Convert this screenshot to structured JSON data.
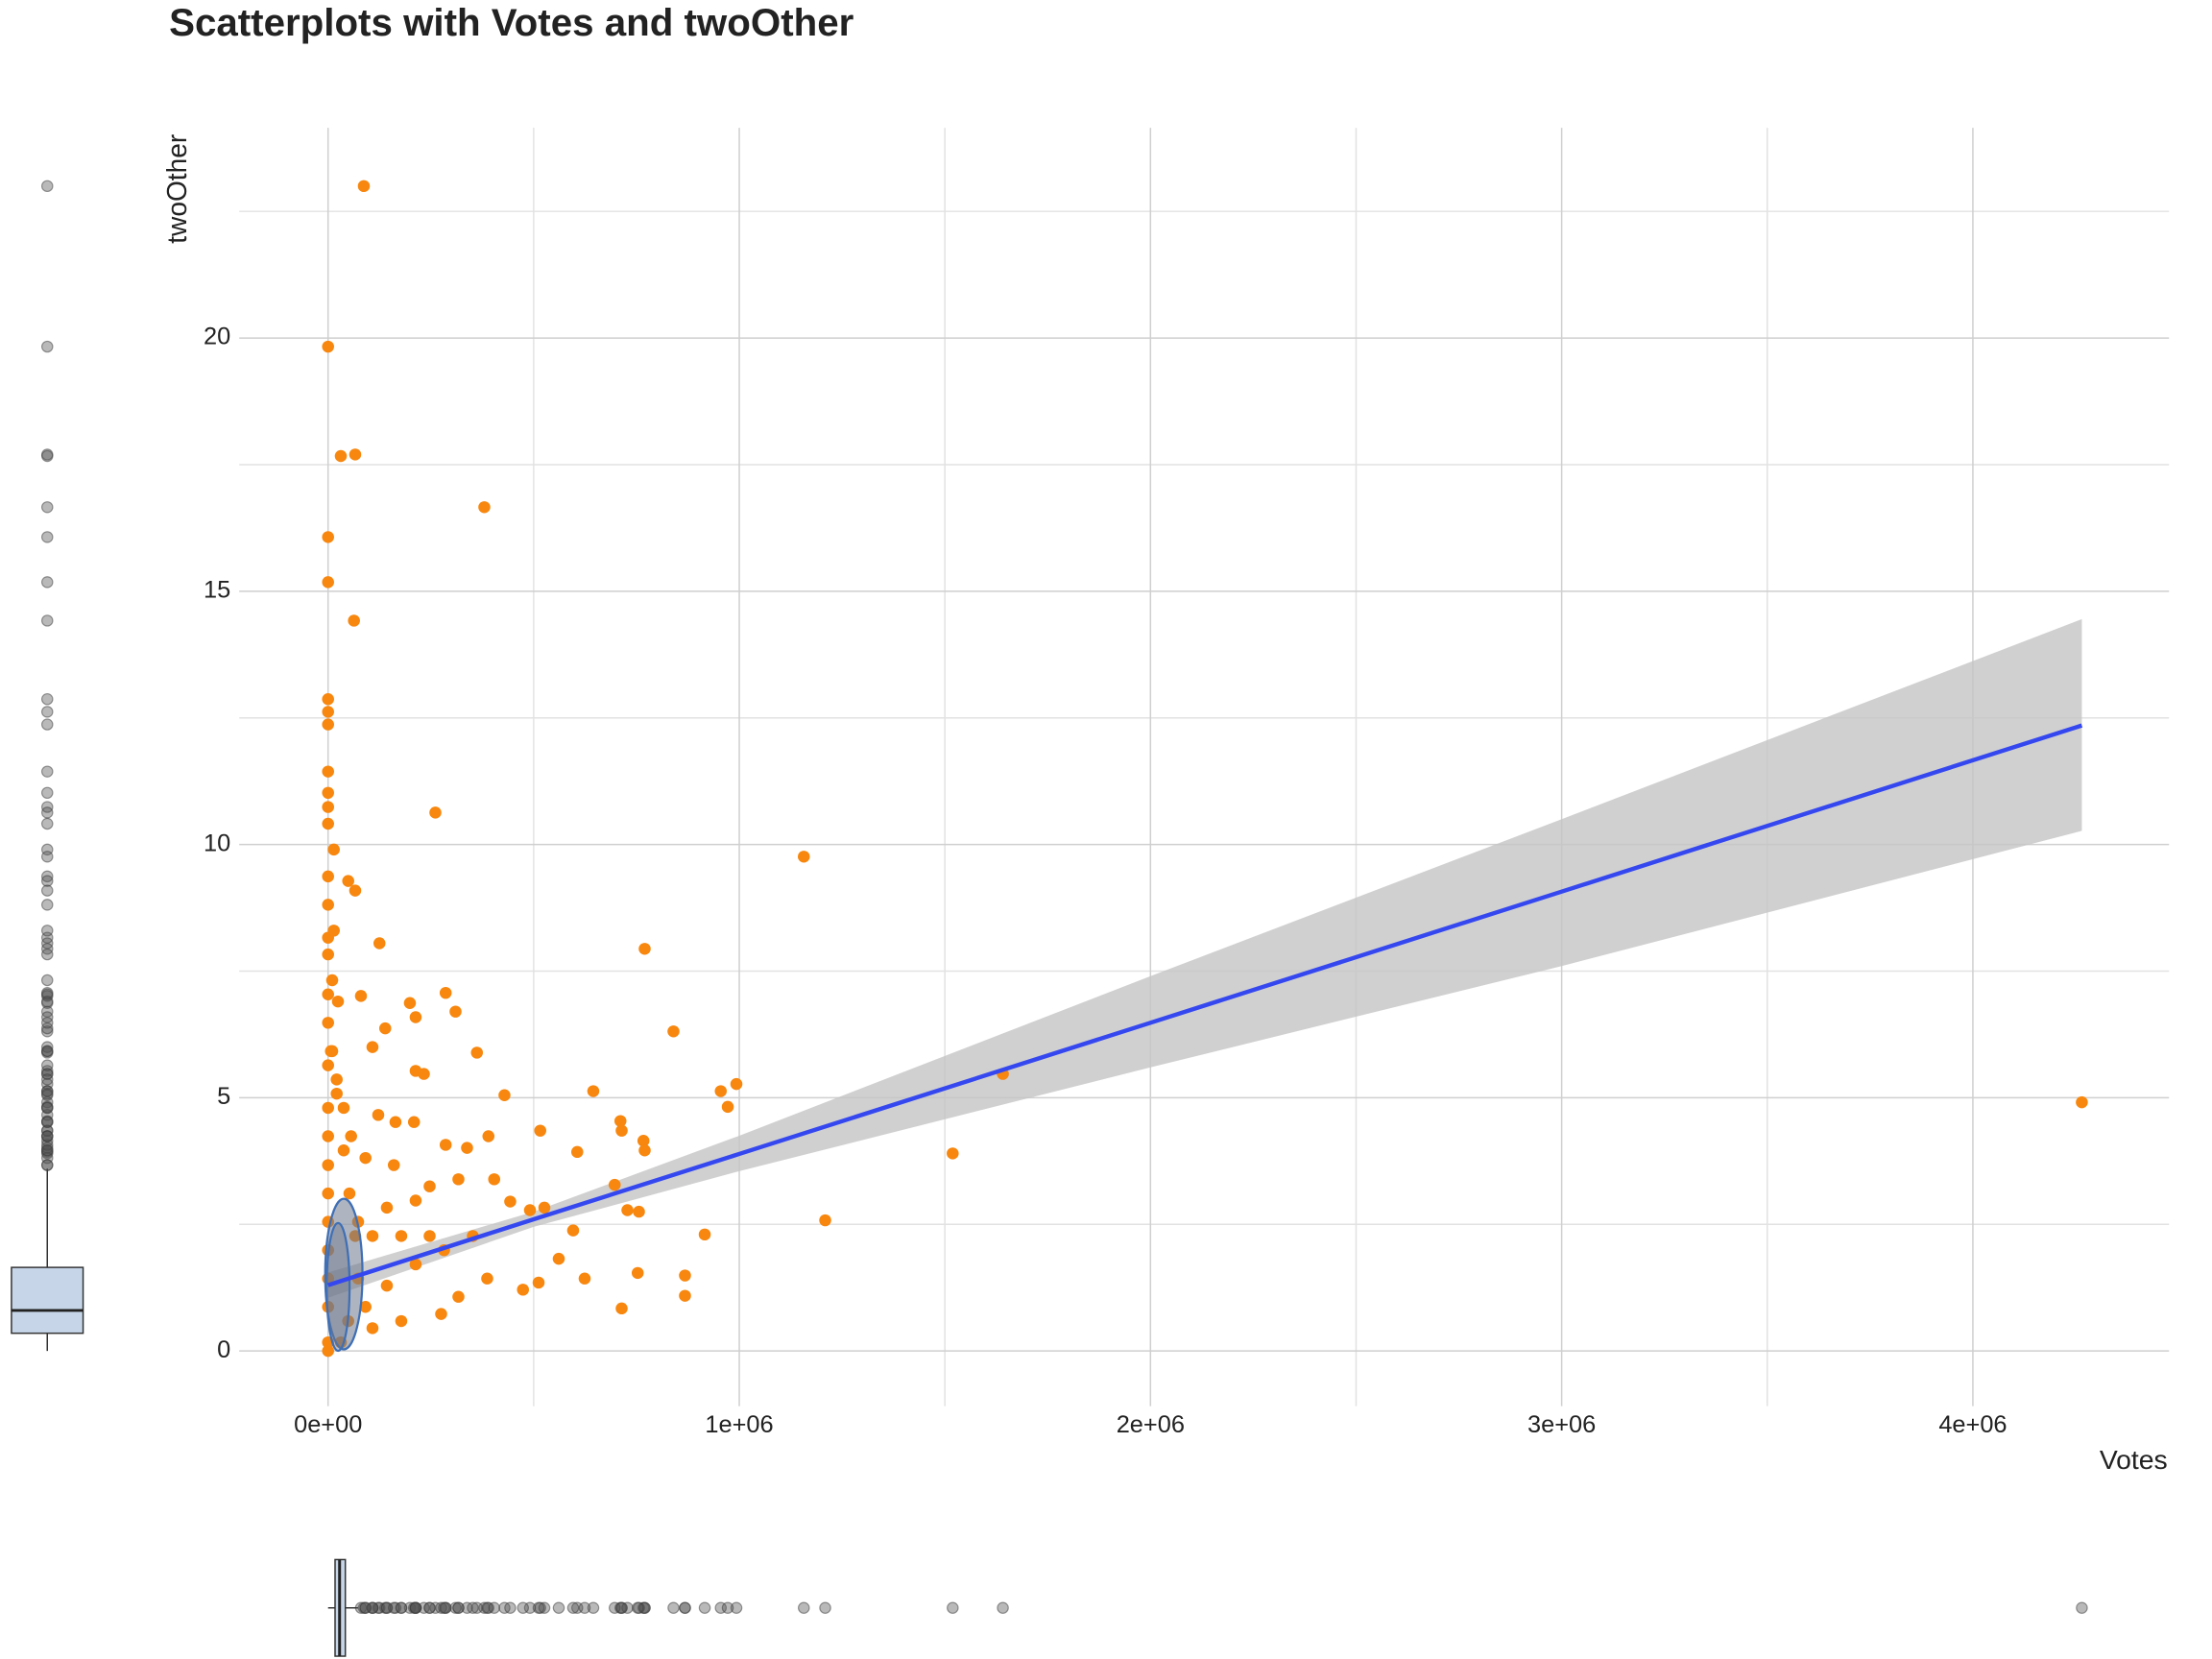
{
  "chart_data": {
    "type": "scatter",
    "title": "Scatterplots with Votes and twoOther",
    "x_label": "Votes",
    "y_label": "twoOther",
    "xlim": [
      -216000,
      4477000
    ],
    "ylim": [
      -1.09,
      24.15
    ],
    "xticks": [
      {
        "value": 0,
        "label": "0e+00"
      },
      {
        "value": 1000000,
        "label": "1e+06"
      },
      {
        "value": 2000000,
        "label": "2e+06"
      },
      {
        "value": 3000000,
        "label": "3e+06"
      },
      {
        "value": 4000000,
        "label": "4e+06"
      }
    ],
    "yticks": [
      0,
      5,
      10,
      15,
      20
    ],
    "x_minor_ticks": [
      500000,
      1500000,
      2500000,
      3500000
    ],
    "y_minor_ticks": [
      2.5,
      7.5,
      12.5,
      17.5,
      22.5
    ],
    "grid": true,
    "series": [
      {
        "color": "#f7870f",
        "x": [
          87000,
          0,
          31000,
          66000,
          380000,
          0,
          0,
          63000,
          0,
          0,
          0,
          0,
          0,
          0,
          0,
          261000,
          14000,
          1157000,
          0,
          49000,
          66000,
          0,
          125000,
          770000,
          0,
          80000,
          286000,
          199000,
          310000,
          213000,
          840000,
          139000,
          362000,
          108000,
          233000,
          213000,
          1641000,
          993000,
          955000,
          645000,
          429000,
          4265000,
          972000,
          711000,
          516000,
          714000,
          767000,
          606000,
          770000,
          1519000,
          390000,
          338000,
          286000,
          122000,
          164000,
          209000,
          697000,
          728000,
          756000,
          1209000,
          916000,
          596000,
          526000,
          491000,
          443000,
          404000,
          317000,
          247000,
          561000,
          624000,
          753000,
          868000,
          868000,
          714000,
          512000,
          474000,
          387000,
          317000,
          275000,
          178000,
          108000,
          91000,
          143000,
          213000,
          282000,
          352000,
          247000,
          178000,
          108000,
          73000,
          143000,
          213000,
          160000,
          91000,
          56000,
          38000,
          21000,
          10000,
          0,
          0,
          0,
          0,
          0,
          0,
          0,
          0,
          0,
          0,
          0,
          0,
          0,
          0,
          10000,
          14000,
          24000,
          38000,
          52000,
          66000,
          73000,
          49000,
          31000,
          21000,
          7000
        ],
        "values": [
          23.0,
          19.83,
          17.67,
          17.7,
          16.66,
          16.07,
          15.18,
          14.42,
          12.87,
          12.62,
          12.37,
          11.44,
          11.02,
          10.74,
          10.41,
          10.63,
          9.9,
          9.76,
          9.37,
          9.28,
          9.09,
          8.81,
          8.05,
          7.94,
          7.83,
          7.01,
          7.07,
          6.87,
          6.7,
          6.59,
          6.31,
          6.37,
          5.89,
          6.0,
          5.47,
          5.53,
          5.47,
          5.27,
          5.13,
          5.13,
          5.05,
          4.91,
          4.82,
          4.54,
          4.35,
          4.35,
          4.15,
          3.93,
          3.96,
          3.9,
          4.24,
          4.01,
          4.07,
          4.66,
          4.52,
          4.52,
          3.28,
          2.78,
          2.75,
          2.58,
          2.3,
          2.38,
          2.83,
          2.78,
          2.95,
          3.39,
          3.39,
          3.25,
          1.82,
          1.43,
          1.54,
          1.49,
          1.09,
          0.84,
          1.35,
          1.21,
          1.43,
          1.07,
          0.73,
          0.59,
          0.45,
          0.87,
          1.29,
          1.71,
          1.99,
          2.27,
          2.27,
          2.27,
          2.27,
          2.55,
          2.83,
          2.97,
          3.67,
          3.81,
          4.24,
          4.8,
          5.36,
          5.92,
          7.04,
          6.48,
          5.64,
          4.8,
          4.24,
          3.67,
          3.11,
          2.55,
          1.99,
          1.43,
          0.87,
          0.17,
          0,
          8.16,
          7.32,
          8.3,
          6.9,
          3.96,
          3.11,
          2.27,
          1.43,
          0.59,
          0.17,
          5.08,
          5.92
        ]
      }
    ],
    "smooth": {
      "color": "#3548f0",
      "band_color": "#c4c4c4",
      "x": [
        0,
        500000,
        1000000,
        2000000,
        3000000,
        4265000
      ],
      "fit": [
        1.3,
        2.6,
        3.89,
        6.48,
        9.07,
        12.35
      ],
      "lower": [
        1.05,
        2.45,
        3.55,
        5.6,
        7.6,
        10.27
      ],
      "upper": [
        1.55,
        2.75,
        4.25,
        7.4,
        10.5,
        14.45
      ]
    },
    "marginal_boxplots": {
      "fill": "#c6d6e8",
      "y": {
        "q1": 0.35,
        "median": 0.8,
        "q3": 1.65,
        "whisker_low": 0,
        "whisker_high": 3.6
      },
      "x": {
        "q1": 17000,
        "median": 28000,
        "q3": 42000,
        "whisker_low": 0,
        "whisker_high": 73000
      }
    }
  }
}
